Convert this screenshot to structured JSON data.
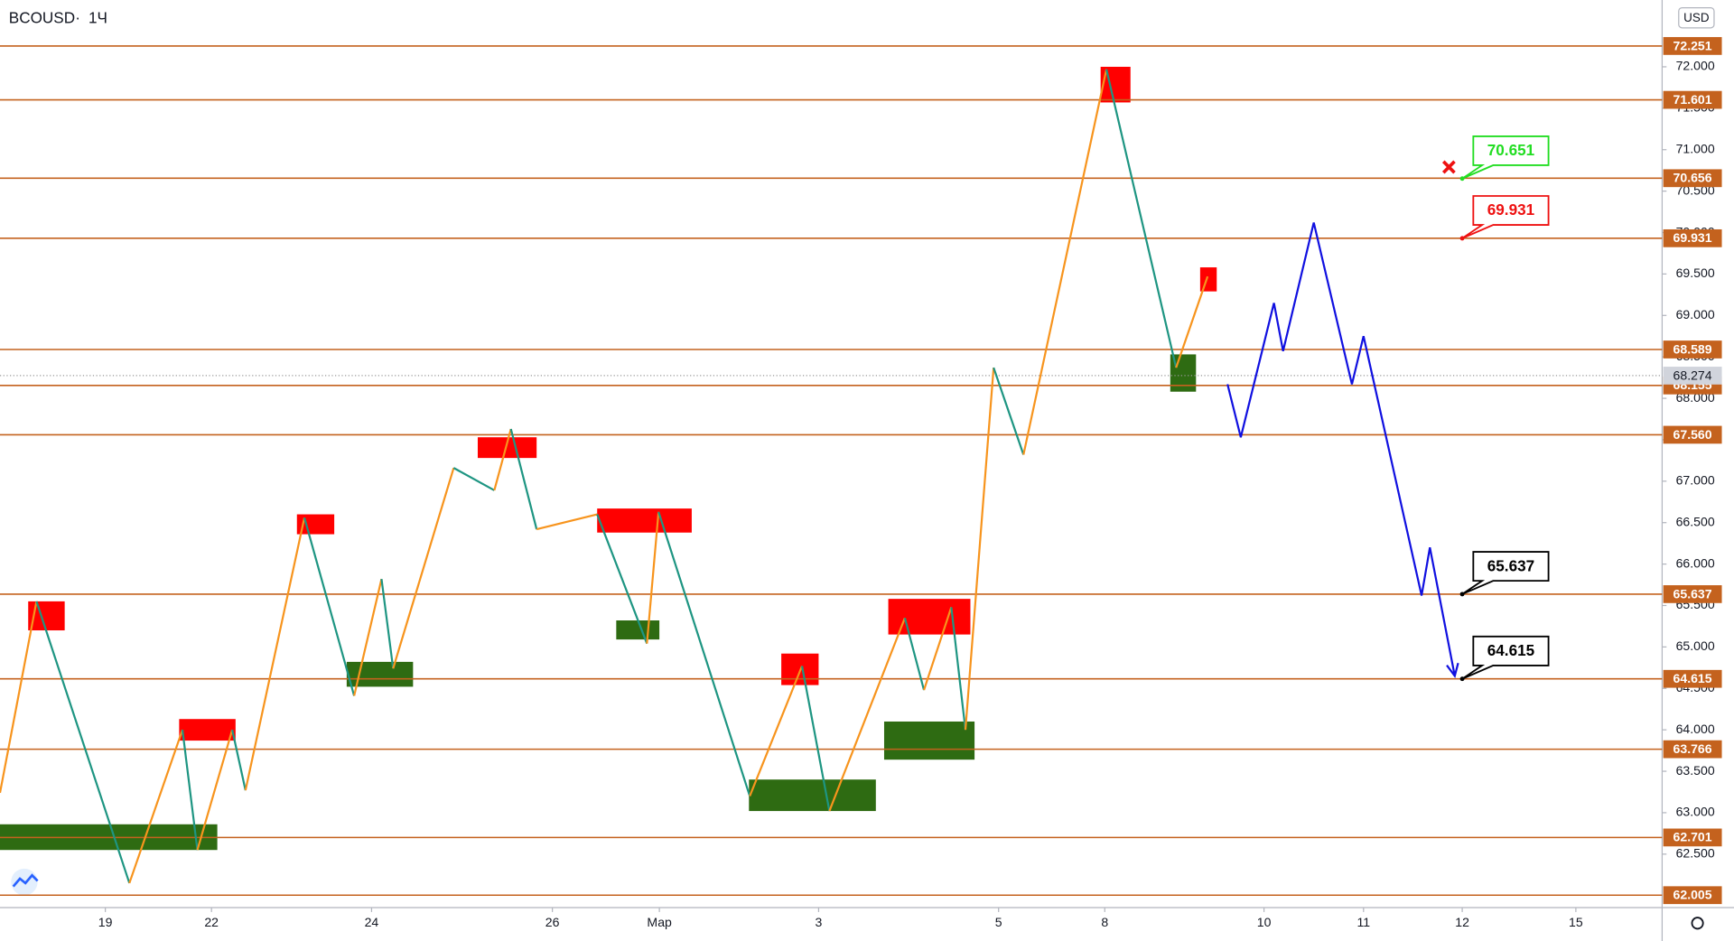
{
  "chart_data": {
    "type": "price-levels",
    "symbol": "BCOUSD",
    "interval": "1Ч",
    "currency": "USD",
    "ylim": [
      61.855,
      72.806
    ],
    "yticks": [
      {
        "value": 62.5,
        "label": "62.500"
      },
      {
        "value": 63,
        "label": "63.000"
      },
      {
        "value": 63.5,
        "label": "63.500"
      },
      {
        "value": 64,
        "label": "64.000"
      },
      {
        "value": 64.5,
        "label": "64.500"
      },
      {
        "value": 65,
        "label": "65.000"
      },
      {
        "value": 65.5,
        "label": "65.500"
      },
      {
        "value": 66,
        "label": "66.000"
      },
      {
        "value": 66.5,
        "label": "66.500"
      },
      {
        "value": 67,
        "label": "67.000"
      },
      {
        "value": 67.5,
        "label": "67.500"
      },
      {
        "value": 68,
        "label": "68.000"
      },
      {
        "value": 68.5,
        "label": "68.500"
      },
      {
        "value": 69,
        "label": "69.000"
      },
      {
        "value": 69.5,
        "label": "69.500"
      },
      {
        "value": 70,
        "label": "70.000"
      },
      {
        "value": 70.5,
        "label": "70.500"
      },
      {
        "value": 71,
        "label": "71.000"
      },
      {
        "value": 71.5,
        "label": "71.500"
      },
      {
        "value": 72,
        "label": "72.000"
      }
    ],
    "xlim": [
      -1.27,
      18.77
    ],
    "xticks": [
      {
        "value": 0,
        "label": "19"
      },
      {
        "value": 1.28,
        "label": "22"
      },
      {
        "value": 3.21,
        "label": "24"
      },
      {
        "value": 5.39,
        "label": "26"
      },
      {
        "value": 6.68,
        "label": "Мар"
      },
      {
        "value": 8.6,
        "label": "3"
      },
      {
        "value": 10.77,
        "label": "5"
      },
      {
        "value": 12.05,
        "label": "8"
      },
      {
        "value": 13.97,
        "label": "10"
      },
      {
        "value": 15.17,
        "label": "11"
      },
      {
        "value": 16.36,
        "label": "12"
      },
      {
        "value": 17.73,
        "label": "15"
      }
    ],
    "level_color": "#c4621e",
    "levels": [
      72.251,
      71.601,
      70.656,
      69.931,
      68.589,
      68.155,
      {
        "value": 67.56,
        "label": "67.560"
      },
      65.637,
      64.615,
      63.766,
      62.701,
      62.005
    ],
    "last_price": 68.274,
    "zigzag": {
      "up_color": "#f7941d",
      "down_color": "#1e9582",
      "x": [
        -1.27,
        -0.83,
        0.29,
        0.93,
        1.11,
        1.53,
        1.69,
        2.4,
        3.0,
        3.33,
        3.47,
        4.2,
        4.69,
        4.89,
        5.2,
        5.93,
        6.53,
        6.67,
        7.77,
        8.4,
        8.73,
        9.64,
        9.87,
        10.2,
        10.37,
        10.71,
        11.07,
        12.07,
        12.91,
        13.29
      ],
      "y": [
        63.24,
        65.55,
        62.15,
        64.0,
        62.55,
        64.0,
        63.27,
        66.56,
        64.41,
        65.82,
        64.74,
        67.16,
        66.89,
        67.63,
        66.42,
        66.6,
        65.04,
        66.63,
        63.2,
        64.77,
        63.02,
        65.35,
        64.48,
        65.48,
        64.0,
        68.37,
        67.32,
        71.97,
        68.37,
        69.47
      ]
    },
    "forecast": {
      "color": "#1010e0",
      "x": [
        13.53,
        13.69,
        14.09,
        14.2,
        14.57,
        15.03,
        15.17,
        15.87,
        15.97,
        16.27
      ],
      "y": [
        68.17,
        67.53,
        69.15,
        68.57,
        70.12,
        68.17,
        68.75,
        65.62,
        66.2,
        64.65
      ]
    },
    "resistance_zones": {
      "color": "#ff0000",
      "boxes": [
        [
          -0.93,
          -0.49,
          65.55,
          65.2
        ],
        [
          0.89,
          1.57,
          64.13,
          63.87
        ],
        [
          2.31,
          2.76,
          66.6,
          66.36
        ],
        [
          4.49,
          5.2,
          67.53,
          67.28
        ],
        [
          5.93,
          7.07,
          66.67,
          66.38
        ],
        [
          8.15,
          8.6,
          64.92,
          64.54
        ],
        [
          9.44,
          10.43,
          65.58,
          65.15
        ],
        [
          12.0,
          12.36,
          72.0,
          71.57
        ],
        [
          13.2,
          13.4,
          69.58,
          69.29
        ]
      ]
    },
    "support_zones": {
      "color": "#2e6b12",
      "boxes": [
        [
          -1.27,
          1.35,
          62.86,
          62.55
        ],
        [
          2.91,
          3.71,
          64.82,
          64.52
        ],
        [
          6.16,
          6.68,
          65.32,
          65.09
        ],
        [
          7.76,
          9.29,
          63.4,
          63.02
        ],
        [
          9.39,
          10.48,
          64.1,
          63.64
        ],
        [
          12.84,
          13.15,
          68.53,
          68.08
        ]
      ]
    },
    "callouts": [
      {
        "x": 16.36,
        "y": 70.651,
        "color": "#22dd22"
      },
      {
        "x": 16.36,
        "y": 69.931,
        "color": "#ee1111"
      },
      {
        "x": 16.36,
        "y": 65.637,
        "color": "#000000"
      },
      {
        "x": 16.36,
        "y": 64.615,
        "color": "#000000"
      }
    ],
    "stop_marker": {
      "x": 16.2,
      "y": 70.79,
      "color": "#ee1111"
    }
  }
}
